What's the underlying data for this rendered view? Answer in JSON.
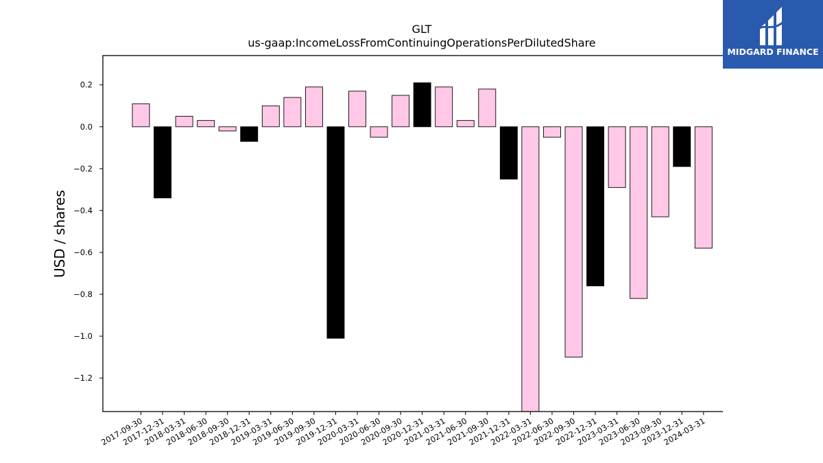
{
  "chart_data": {
    "type": "bar",
    "title": "GLT",
    "subtitle": "us-gaap:IncomeLossFromContinuingOperationsPerDilutedShare",
    "xlabel": "",
    "ylabel": "USD / shares",
    "ylim": [
      -1.36,
      0.34
    ],
    "yticks": [
      -1.2,
      -1.0,
      -0.8,
      -0.6,
      -0.4,
      -0.2,
      0.0,
      0.2
    ],
    "ytick_labels": [
      "−1.2",
      "−1.0",
      "−0.8",
      "−0.6",
      "−0.4",
      "−0.2",
      "0.0",
      "0.2"
    ],
    "grid": false,
    "categories": [
      "2017-09-30",
      "2017-12-31",
      "2018-03-31",
      "2018-06-30",
      "2018-09-30",
      "2018-12-31",
      "2019-03-31",
      "2019-06-30",
      "2019-09-30",
      "2019-12-31",
      "2020-03-31",
      "2020-06-30",
      "2020-09-30",
      "2020-12-31",
      "2021-03-31",
      "2021-06-30",
      "2021-09-30",
      "2021-12-31",
      "2022-03-31",
      "2022-06-30",
      "2022-09-30",
      "2022-12-31",
      "2023-03-31",
      "2023-06-30",
      "2023-09-30",
      "2023-12-31",
      "2024-03-31"
    ],
    "values": [
      0.11,
      -0.34,
      0.05,
      0.03,
      -0.02,
      -0.07,
      0.1,
      0.14,
      0.19,
      -1.01,
      0.17,
      -0.05,
      0.15,
      0.21,
      0.19,
      0.03,
      0.18,
      -0.25,
      -1.36,
      -0.05,
      -1.1,
      -0.76,
      -0.29,
      -0.82,
      -0.43,
      -0.19,
      -0.58
    ],
    "bar_colors": [
      "#ffc8e6",
      "#000000",
      "#ffc8e6",
      "#ffc8e6",
      "#ffc8e6",
      "#000000",
      "#ffc8e6",
      "#ffc8e6",
      "#ffc8e6",
      "#000000",
      "#ffc8e6",
      "#ffc8e6",
      "#ffc8e6",
      "#000000",
      "#ffc8e6",
      "#ffc8e6",
      "#ffc8e6",
      "#000000",
      "#ffc8e6",
      "#ffc8e6",
      "#ffc8e6",
      "#000000",
      "#ffc8e6",
      "#ffc8e6",
      "#ffc8e6",
      "#000000",
      "#ffc8e6"
    ]
  },
  "logo": {
    "text": "MIDGARD FINANCE",
    "background": "#2a5aae",
    "icon": "midgard-logo-icon"
  }
}
